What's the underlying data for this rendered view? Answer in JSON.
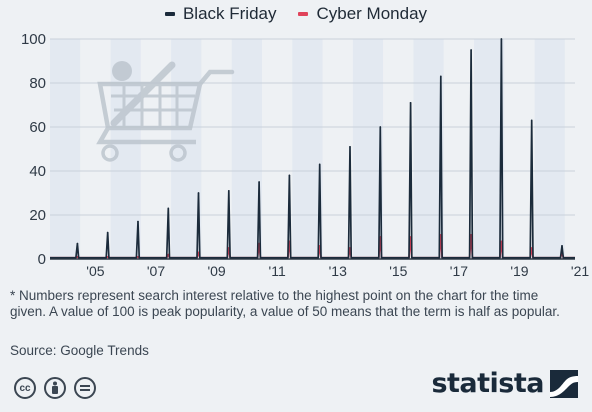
{
  "legend": {
    "items": [
      {
        "label": "Black Friday",
        "color": "#1b2b3b"
      },
      {
        "label": "Cyber Monday",
        "color": "#e0435a"
      }
    ]
  },
  "footnote": "* Numbers represent search interest relative to the highest point on the chart for the time given. A value of 100 is peak popularity, a value of 50 means that the term is half as popular.",
  "source": "Source: Google Trends",
  "brand": "statista",
  "license_icons": [
    "creative-commons-icon",
    "attribution-icon",
    "no-derivatives-icon"
  ],
  "chart_data": {
    "type": "line",
    "ylim": [
      0,
      100
    ],
    "yticks": [
      0,
      20,
      40,
      60,
      80,
      100
    ],
    "x_tick_labels": [
      "'05",
      "'07",
      "'09",
      "'11",
      "'13",
      "'15",
      "'17",
      "'19",
      "'21"
    ],
    "x_range": [
      "2004-01",
      "2021-05"
    ],
    "band_colors": [
      "#e3e9f1",
      "#eef1f4"
    ],
    "grid": true,
    "legend_position": "top",
    "series": [
      {
        "name": "Black Friday",
        "color": "#1b2b3b",
        "peaks": [
          {
            "date": "2004-11",
            "value": 7
          },
          {
            "date": "2005-11",
            "value": 12
          },
          {
            "date": "2006-11",
            "value": 17
          },
          {
            "date": "2007-11",
            "value": 23
          },
          {
            "date": "2008-11",
            "value": 30
          },
          {
            "date": "2009-11",
            "value": 31
          },
          {
            "date": "2010-11",
            "value": 35
          },
          {
            "date": "2011-11",
            "value": 38
          },
          {
            "date": "2012-11",
            "value": 43
          },
          {
            "date": "2013-11",
            "value": 51
          },
          {
            "date": "2014-11",
            "value": 60
          },
          {
            "date": "2015-11",
            "value": 71
          },
          {
            "date": "2016-11",
            "value": 83
          },
          {
            "date": "2017-11",
            "value": 95
          },
          {
            "date": "2018-11",
            "value": 100
          },
          {
            "date": "2019-11",
            "value": 63
          },
          {
            "date": "2020-11",
            "value": 6
          }
        ]
      },
      {
        "name": "Cyber Monday",
        "color": "#e0435a",
        "peaks": [
          {
            "date": "2004-11",
            "value": 1
          },
          {
            "date": "2005-11",
            "value": 1
          },
          {
            "date": "2006-11",
            "value": 1
          },
          {
            "date": "2007-11",
            "value": 2
          },
          {
            "date": "2008-11",
            "value": 3
          },
          {
            "date": "2009-11",
            "value": 5
          },
          {
            "date": "2010-11",
            "value": 7
          },
          {
            "date": "2011-11",
            "value": 8
          },
          {
            "date": "2012-11",
            "value": 6
          },
          {
            "date": "2013-11",
            "value": 5
          },
          {
            "date": "2014-11",
            "value": 10
          },
          {
            "date": "2015-11",
            "value": 10
          },
          {
            "date": "2016-11",
            "value": 11
          },
          {
            "date": "2017-11",
            "value": 11
          },
          {
            "date": "2018-11",
            "value": 8
          },
          {
            "date": "2019-11",
            "value": 5
          },
          {
            "date": "2020-11",
            "value": 3
          }
        ]
      }
    ]
  }
}
